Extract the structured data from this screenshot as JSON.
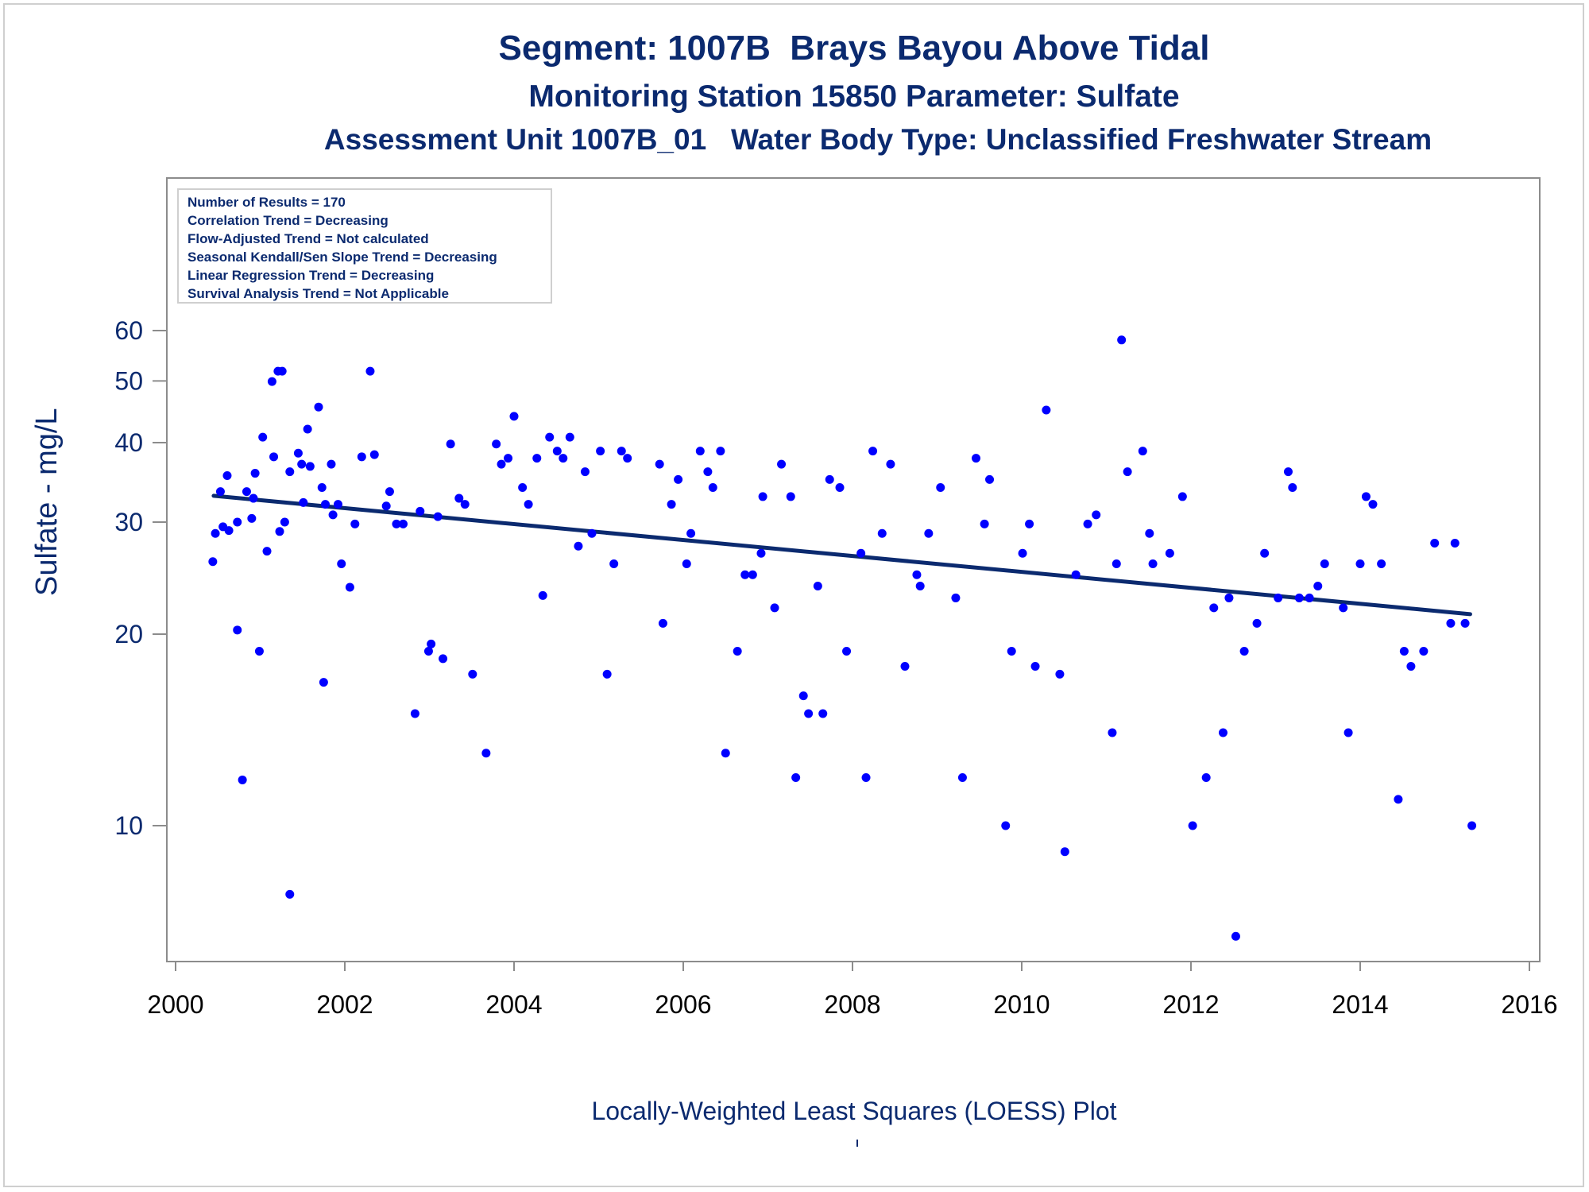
{
  "chart_data": {
    "type": "scatter",
    "title": "Segment: 1007B  Brays Bayou Above Tidal",
    "subtitle": "Monitoring Station 15850 Parameter: Sulfate",
    "subtitle2": "Assessment Unit 1007B_01   Water Body Type: Unclassified Freshwater Stream",
    "ylabel": "Sulfate - mg/L",
    "xlabel": "",
    "footnote": "Locally-Weighted Least Squares (LOESS) Plot",
    "y_scale": "log",
    "xlim": [
      2000,
      2016
    ],
    "ylim": [
      7,
      60
    ],
    "x_ticks": [
      2000,
      2002,
      2004,
      2006,
      2008,
      2010,
      2012,
      2014,
      2016
    ],
    "y_ticks": [
      10,
      20,
      30,
      40,
      50,
      60
    ],
    "grid": false,
    "legend_placement": "top-left",
    "colors": {
      "points": "#0000ff",
      "trend": "#0b2a6f",
      "text": "#0b2a6f"
    },
    "info_box": [
      "Number of Results = 170",
      "Correlation Trend = Decreasing",
      "Flow-Adjusted Trend = Not calculated",
      "Seasonal Kendall/Sen Slope Trend = Decreasing",
      "Linear Regression Trend = Decreasing",
      "Survival Analysis Trend = Not Applicable"
    ],
    "trend_line": {
      "x": [
        2000.45,
        2015.3
      ],
      "y": [
        33.0,
        21.5
      ]
    },
    "points": [
      [
        2000.44,
        26
      ],
      [
        2000.47,
        28.8
      ],
      [
        2000.53,
        33.5
      ],
      [
        2000.56,
        29.5
      ],
      [
        2000.61,
        35.5
      ],
      [
        2000.63,
        29.1
      ],
      [
        2000.73,
        30
      ],
      [
        2000.73,
        20.3
      ],
      [
        2000.79,
        11.8
      ],
      [
        2000.84,
        33.5
      ],
      [
        2000.9,
        30.4
      ],
      [
        2000.92,
        32.7
      ],
      [
        2000.94,
        35.8
      ],
      [
        2000.99,
        18.8
      ],
      [
        2001.03,
        40.8
      ],
      [
        2001.08,
        27
      ],
      [
        2001.14,
        49.9
      ],
      [
        2001.16,
        38
      ],
      [
        2001.21,
        51.8
      ],
      [
        2001.23,
        29
      ],
      [
        2001.26,
        51.8
      ],
      [
        2001.29,
        30
      ],
      [
        2001.35,
        7.8
      ],
      [
        2001.35,
        36
      ],
      [
        2001.45,
        38.5
      ],
      [
        2001.49,
        37
      ],
      [
        2001.51,
        32.2
      ],
      [
        2001.56,
        42
      ],
      [
        2001.59,
        36.7
      ],
      [
        2001.69,
        45.5
      ],
      [
        2001.73,
        34
      ],
      [
        2001.75,
        16.8
      ],
      [
        2001.77,
        32
      ],
      [
        2001.84,
        37
      ],
      [
        2001.86,
        30.8
      ],
      [
        2001.92,
        32
      ],
      [
        2001.96,
        25.8
      ],
      [
        2002.06,
        23.7
      ],
      [
        2002.12,
        29.8
      ],
      [
        2002.2,
        38
      ],
      [
        2002.3,
        51.8
      ],
      [
        2002.35,
        38.3
      ],
      [
        2002.49,
        31.8
      ],
      [
        2002.53,
        33.5
      ],
      [
        2002.61,
        29.8
      ],
      [
        2002.69,
        29.8
      ],
      [
        2002.83,
        15
      ],
      [
        2002.89,
        31.2
      ],
      [
        2002.99,
        18.8
      ],
      [
        2003.02,
        19.3
      ],
      [
        2003.1,
        30.6
      ],
      [
        2003.16,
        18.3
      ],
      [
        2003.25,
        39.8
      ],
      [
        2003.35,
        32.7
      ],
      [
        2003.42,
        32
      ],
      [
        2003.51,
        17.3
      ],
      [
        2003.67,
        13
      ],
      [
        2003.79,
        39.8
      ],
      [
        2003.85,
        37
      ],
      [
        2003.93,
        37.8
      ],
      [
        2004.0,
        44
      ],
      [
        2004.1,
        34
      ],
      [
        2004.17,
        32
      ],
      [
        2004.27,
        37.8
      ],
      [
        2004.34,
        23
      ],
      [
        2004.42,
        40.8
      ],
      [
        2004.51,
        38.8
      ],
      [
        2004.58,
        37.8
      ],
      [
        2004.66,
        40.8
      ],
      [
        2004.76,
        27.5
      ],
      [
        2004.84,
        36
      ],
      [
        2004.92,
        28.8
      ],
      [
        2005.02,
        38.8
      ],
      [
        2005.1,
        17.3
      ],
      [
        2005.18,
        25.8
      ],
      [
        2005.27,
        38.8
      ],
      [
        2005.34,
        37.8
      ],
      [
        2005.72,
        37
      ],
      [
        2005.76,
        20.8
      ],
      [
        2005.86,
        32
      ],
      [
        2005.94,
        35
      ],
      [
        2006.04,
        25.8
      ],
      [
        2006.09,
        28.8
      ],
      [
        2006.2,
        38.8
      ],
      [
        2006.29,
        36
      ],
      [
        2006.35,
        34
      ],
      [
        2006.44,
        38.8
      ],
      [
        2006.5,
        13
      ],
      [
        2006.64,
        18.8
      ],
      [
        2006.73,
        24.8
      ],
      [
        2006.82,
        24.8
      ],
      [
        2006.92,
        26.8
      ],
      [
        2006.94,
        32.9
      ],
      [
        2007.08,
        22
      ],
      [
        2007.16,
        37
      ],
      [
        2007.27,
        32.9
      ],
      [
        2007.33,
        11.9
      ],
      [
        2007.42,
        16
      ],
      [
        2007.48,
        15
      ],
      [
        2007.59,
        23.8
      ],
      [
        2007.65,
        15
      ],
      [
        2007.73,
        35
      ],
      [
        2007.85,
        34
      ],
      [
        2007.93,
        18.8
      ],
      [
        2008.1,
        26.8
      ],
      [
        2008.16,
        11.9
      ],
      [
        2008.24,
        38.8
      ],
      [
        2008.35,
        28.8
      ],
      [
        2008.45,
        37
      ],
      [
        2008.62,
        17.8
      ],
      [
        2008.76,
        24.8
      ],
      [
        2008.8,
        23.8
      ],
      [
        2008.9,
        28.8
      ],
      [
        2009.04,
        34
      ],
      [
        2009.22,
        22.8
      ],
      [
        2009.3,
        11.9
      ],
      [
        2009.46,
        37.8
      ],
      [
        2009.56,
        29.8
      ],
      [
        2009.62,
        35
      ],
      [
        2009.81,
        10
      ],
      [
        2009.88,
        18.8
      ],
      [
        2010.01,
        26.8
      ],
      [
        2010.09,
        29.8
      ],
      [
        2010.16,
        17.8
      ],
      [
        2010.29,
        45
      ],
      [
        2010.45,
        17.3
      ],
      [
        2010.51,
        9.1
      ],
      [
        2010.64,
        24.8
      ],
      [
        2010.78,
        29.8
      ],
      [
        2010.88,
        30.8
      ],
      [
        2011.07,
        14
      ],
      [
        2011.12,
        25.8
      ],
      [
        2011.18,
        58
      ],
      [
        2011.25,
        36
      ],
      [
        2011.43,
        38.8
      ],
      [
        2011.51,
        28.8
      ],
      [
        2011.55,
        25.8
      ],
      [
        2011.75,
        26.8
      ],
      [
        2011.9,
        32.9
      ],
      [
        2012.02,
        10
      ],
      [
        2012.18,
        11.9
      ],
      [
        2012.27,
        22
      ],
      [
        2012.38,
        14
      ],
      [
        2012.45,
        22.8
      ],
      [
        2012.53,
        6.7
      ],
      [
        2012.63,
        18.8
      ],
      [
        2012.78,
        20.8
      ],
      [
        2012.87,
        26.8
      ],
      [
        2013.03,
        22.8
      ],
      [
        2013.15,
        36
      ],
      [
        2013.2,
        34
      ],
      [
        2013.28,
        22.8
      ],
      [
        2013.4,
        22.8
      ],
      [
        2013.5,
        23.8
      ],
      [
        2013.58,
        25.8
      ],
      [
        2013.8,
        22
      ],
      [
        2013.86,
        14
      ],
      [
        2014.0,
        25.8
      ],
      [
        2014.07,
        32.9
      ],
      [
        2014.15,
        32
      ],
      [
        2014.25,
        25.8
      ],
      [
        2014.45,
        11
      ],
      [
        2014.52,
        18.8
      ],
      [
        2014.6,
        17.8
      ],
      [
        2014.75,
        18.8
      ],
      [
        2014.88,
        27.8
      ],
      [
        2015.07,
        20.8
      ],
      [
        2015.12,
        27.8
      ],
      [
        2015.24,
        20.8
      ],
      [
        2015.32,
        10
      ]
    ]
  }
}
